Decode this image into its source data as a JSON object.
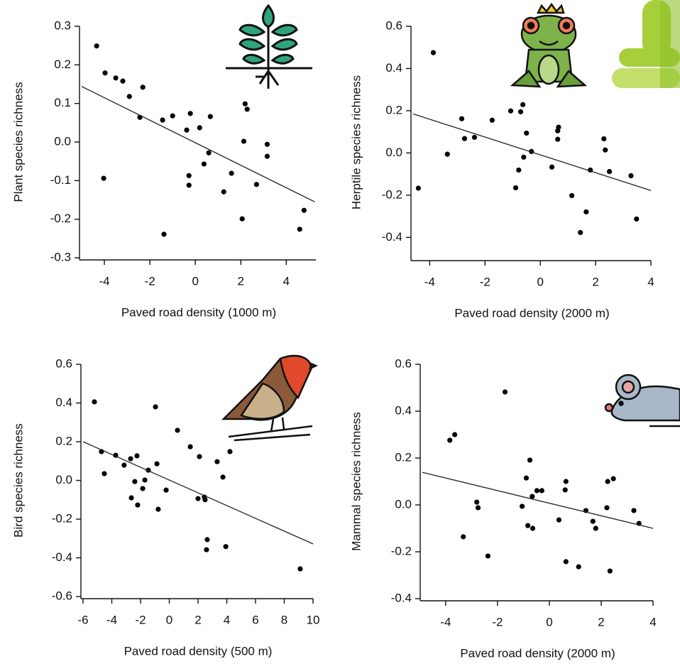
{
  "chart_data": [
    {
      "type": "scatter",
      "color": "#000000",
      "trend_color": "#222222",
      "xlabel": "Paved road density (1000 m)",
      "ylabel": "Plant species richness",
      "xlim": [
        -5,
        5.3
      ],
      "ylim": [
        -0.3,
        0.3
      ],
      "xticks": [
        -4,
        -2,
        0,
        2,
        4
      ],
      "yticks": [
        -0.3,
        -0.2,
        -0.1,
        {
          "value": 0,
          "label": "0.0"
        },
        0.1,
        0.2,
        0.3
      ],
      "x": [
        -4.34,
        -3.97,
        -3.5,
        -3.19,
        -2.9,
        -2.31,
        -2.44,
        -4.03,
        -1.38,
        -1.44,
        -1.0,
        -0.38,
        -0.22,
        0.19,
        0.66,
        0.59,
        0.38,
        -0.28,
        -0.28,
        1.25,
        1.59,
        2.19,
        2.28,
        2.13,
        2.06,
        2.69,
        3.16,
        3.16,
        4.78,
        4.59
      ],
      "y": [
        0.249,
        0.179,
        0.166,
        0.158,
        0.118,
        0.142,
        0.064,
        -0.094,
        -0.239,
        0.057,
        0.068,
        0.031,
        0.074,
        0.037,
        0.066,
        -0.028,
        -0.057,
        -0.087,
        -0.112,
        -0.129,
        -0.081,
        0.099,
        0.085,
        0.002,
        -0.199,
        -0.11,
        -0.006,
        -0.037,
        -0.177,
        -0.226
      ],
      "trend": {
        "x": [
          -5,
          5.25
        ],
        "y": [
          0.144,
          -0.155
        ]
      }
    },
    {
      "type": "scatter",
      "color": "#000000",
      "trend_color": "#222222",
      "xlabel": "Paved road density (2000 m)",
      "ylabel": "Herptile species richness",
      "xlim": [
        -4.6,
        4
      ],
      "ylim": [
        -0.5,
        0.6
      ],
      "xticks": [
        -4,
        -2,
        0,
        2,
        4
      ],
      "yticks": [
        -0.4,
        -0.2,
        {
          "value": 0,
          "label": "0.0"
        },
        0.2,
        0.4,
        0.6
      ],
      "x": [
        -3.87,
        -4.41,
        -3.36,
        -2.84,
        -2.74,
        -2.38,
        -1.74,
        -1.07,
        -0.71,
        -0.63,
        -0.5,
        -0.32,
        -0.6,
        -0.78,
        -0.89,
        0.42,
        0.66,
        0.63,
        0.63,
        1.14,
        1.66,
        1.45,
        1.81,
        2.3,
        2.35,
        2.5,
        3.28,
        3.48
      ],
      "y": [
        0.475,
        -0.167,
        -0.006,
        0.162,
        0.068,
        0.074,
        0.155,
        0.199,
        0.195,
        0.229,
        0.094,
        0.007,
        -0.02,
        -0.081,
        -0.165,
        -0.067,
        0.122,
        0.105,
        0.065,
        -0.202,
        -0.279,
        -0.377,
        -0.081,
        0.067,
        0.014,
        -0.088,
        -0.108,
        -0.313
      ],
      "trend": {
        "x": [
          -4.6,
          4
        ],
        "y": [
          0.185,
          -0.178
        ]
      }
    },
    {
      "type": "scatter",
      "color": "#000000",
      "trend_color": "#222222",
      "xlabel": "Paved road density (500 m)",
      "ylabel": "Bird species richness",
      "xlim": [
        -6,
        10
      ],
      "ylim": [
        -0.6,
        0.6
      ],
      "xticks": [
        -6,
        -4,
        -2,
        0,
        2,
        4,
        6,
        8,
        10
      ],
      "yticks": [
        -0.6,
        -0.4,
        -0.2,
        {
          "value": 0,
          "label": "0.0"
        },
        0.2,
        0.4,
        0.6
      ],
      "x": [
        -5.21,
        -4.72,
        -4.52,
        -3.73,
        -3.14,
        -2.69,
        -2.25,
        -2.4,
        -2.64,
        -2.2,
        -1.85,
        -1.7,
        -1.46,
        -0.96,
        -0.86,
        -0.77,
        -0.22,
        0.57,
        1.46,
        2.1,
        2.0,
        2.44,
        2.49,
        2.64,
        2.59,
        3.33,
        3.73,
        3.93,
        4.22,
        9.11
      ],
      "y": [
        0.406,
        0.149,
        0.035,
        0.13,
        0.079,
        0.112,
        0.127,
        -0.006,
        -0.09,
        -0.127,
        -0.042,
        0.002,
        0.053,
        0.38,
        0.086,
        -0.149,
        -0.05,
        0.259,
        0.174,
        0.123,
        -0.094,
        -0.086,
        -0.1,
        -0.306,
        -0.358,
        0.097,
        0.017,
        -0.342,
        0.149,
        -0.457
      ],
      "trend": {
        "x": [
          -6,
          10
        ],
        "y": [
          0.2,
          -0.328
        ]
      }
    },
    {
      "type": "scatter",
      "color": "#000000",
      "trend_color": "#222222",
      "xlabel": "Paved road density (2000 m)",
      "ylabel": "Mammal species richness",
      "xlim": [
        -4.9,
        4
      ],
      "ylim": [
        -0.4,
        0.6
      ],
      "xticks": [
        -4,
        -2,
        0,
        2,
        4
      ],
      "yticks": [
        -0.4,
        -0.2,
        {
          "value": 0,
          "label": "0.0"
        },
        0.2,
        0.4,
        0.6
      ],
      "x": [
        -3.84,
        -3.65,
        -3.32,
        -2.8,
        -2.75,
        -2.37,
        -1.71,
        -1.05,
        -0.89,
        -0.75,
        -0.83,
        -0.64,
        -0.66,
        -0.48,
        -0.29,
        0.37,
        0.64,
        0.61,
        0.64,
        1.13,
        1.41,
        1.68,
        1.79,
        2.25,
        2.47,
        2.22,
        2.34,
        3.26,
        3.46
      ],
      "y": [
        0.276,
        0.3,
        -0.136,
        0.012,
        -0.012,
        -0.218,
        0.482,
        -0.006,
        0.115,
        0.191,
        -0.088,
        -0.1,
        0.036,
        0.061,
        0.061,
        -0.064,
        0.1,
        0.064,
        -0.242,
        -0.264,
        -0.024,
        -0.07,
        -0.1,
        0.1,
        0.112,
        -0.012,
        -0.282,
        -0.024,
        -0.079
      ],
      "trend": {
        "x": [
          -4.9,
          4
        ],
        "y": [
          0.139,
          -0.1
        ]
      }
    }
  ]
}
